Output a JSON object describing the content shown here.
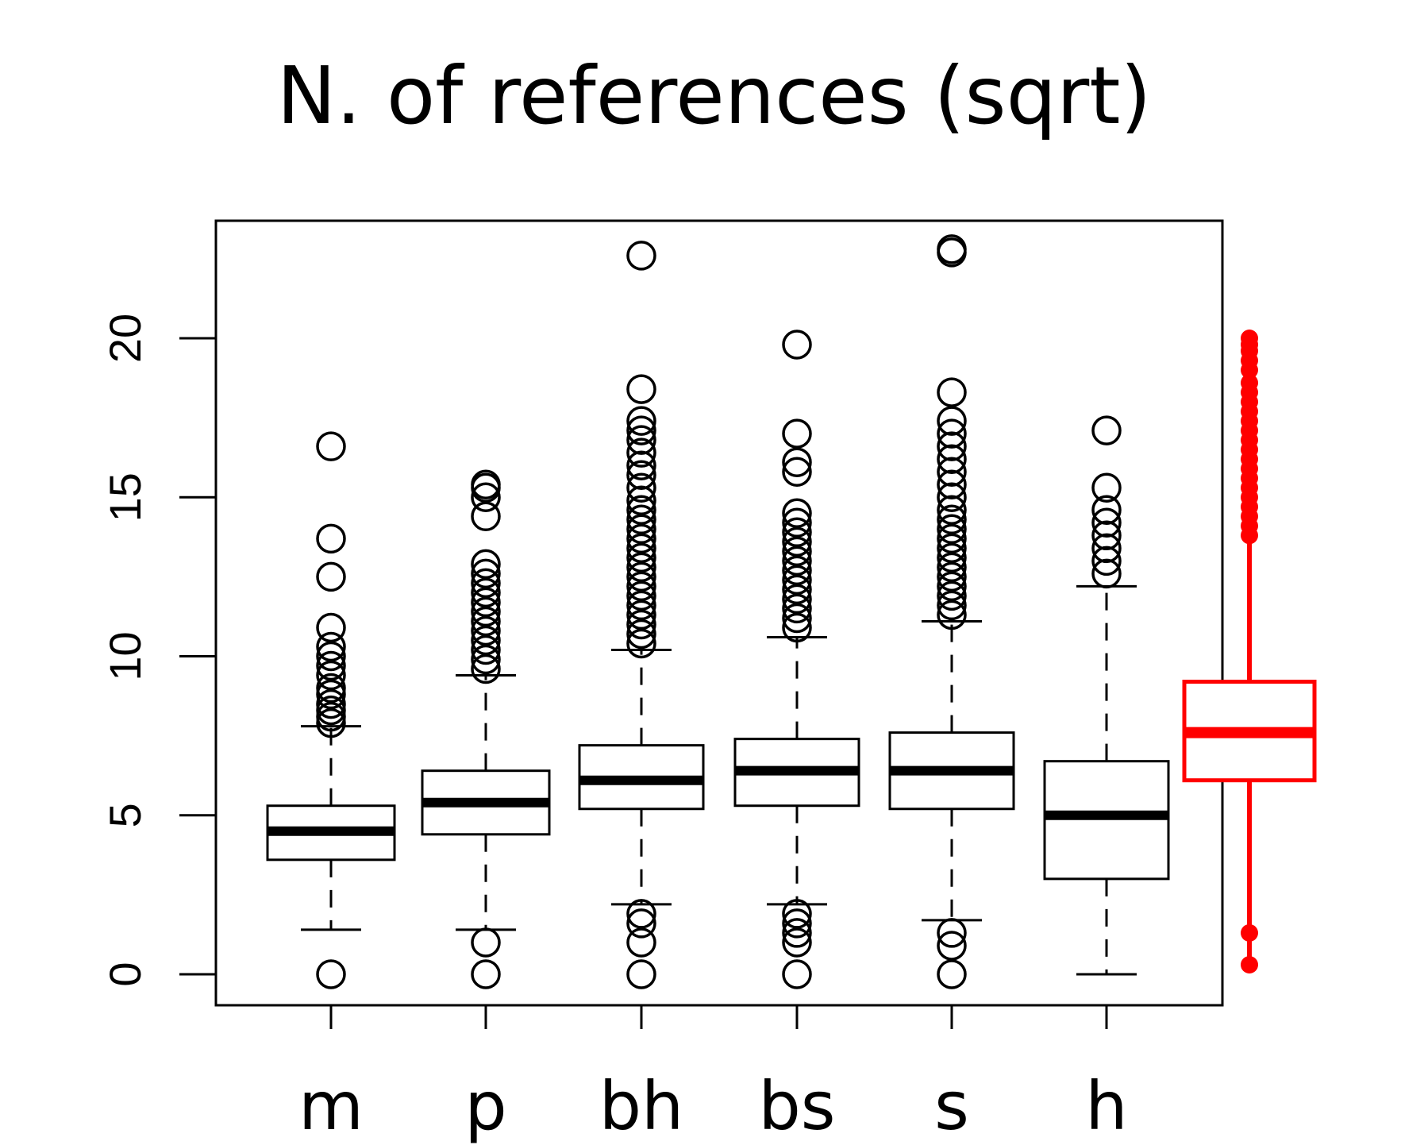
{
  "chart_data": {
    "type": "boxplot",
    "title": "N. of references (sqrt)",
    "xlabel": "",
    "ylabel": "",
    "ylim": [
      -0.9,
      23.7
    ],
    "yticks": [
      0,
      5,
      10,
      15,
      20
    ],
    "ytick_labels": [
      "0",
      "5",
      "10",
      "15",
      "20"
    ],
    "grid": false,
    "categories": [
      "m",
      "p",
      "bh",
      "bs",
      "s",
      "h"
    ],
    "boxes": [
      {
        "label": "m",
        "whisker_low": 1.4,
        "q1": 3.6,
        "median": 4.5,
        "q3": 5.3,
        "whisker_high": 7.8,
        "outliers": [
          0,
          7.9,
          8.1,
          8.3,
          8.5,
          8.8,
          9.0,
          9.4,
          9.7,
          10.0,
          10.3,
          10.9,
          12.5,
          13.7,
          16.6
        ],
        "color": "#000000"
      },
      {
        "label": "p",
        "whisker_low": 1.4,
        "q1": 4.4,
        "median": 5.4,
        "q3": 6.4,
        "whisker_high": 9.4,
        "outliers": [
          0,
          1.0,
          9.6,
          9.9,
          10.2,
          10.5,
          10.8,
          11.1,
          11.4,
          11.7,
          12.0,
          12.3,
          12.6,
          12.9,
          14.4,
          15.0,
          15.3,
          15.4
        ],
        "color": "#000000"
      },
      {
        "label": "bh",
        "whisker_low": 2.2,
        "q1": 5.2,
        "median": 6.1,
        "q3": 7.2,
        "whisker_high": 10.2,
        "outliers": [
          0,
          1.0,
          1.6,
          1.9,
          10.4,
          10.7,
          11.0,
          11.3,
          11.6,
          11.9,
          12.2,
          12.5,
          12.8,
          13.1,
          13.4,
          13.7,
          14.0,
          14.3,
          14.6,
          14.9,
          15.3,
          15.7,
          16.0,
          16.4,
          16.8,
          17.1,
          17.4,
          18.4,
          22.6
        ],
        "color": "#000000"
      },
      {
        "label": "bs",
        "whisker_low": 2.2,
        "q1": 5.3,
        "median": 6.4,
        "q3": 7.4,
        "whisker_high": 10.6,
        "outliers": [
          0,
          1.0,
          1.3,
          1.6,
          1.9,
          10.9,
          11.2,
          11.5,
          11.8,
          12.1,
          12.4,
          12.7,
          13.0,
          13.3,
          13.6,
          13.9,
          14.2,
          14.5,
          15.8,
          16.1,
          17.0,
          19.8
        ],
        "color": "#000000"
      },
      {
        "label": "s",
        "whisker_low": 1.7,
        "q1": 5.2,
        "median": 6.4,
        "q3": 7.6,
        "whisker_high": 11.1,
        "outliers": [
          0,
          0.9,
          1.3,
          11.3,
          11.6,
          11.9,
          12.2,
          12.5,
          12.8,
          13.1,
          13.4,
          13.7,
          14.0,
          14.3,
          14.6,
          15.0,
          15.4,
          15.8,
          16.2,
          16.6,
          17.0,
          17.4,
          18.3,
          22.7,
          22.8
        ],
        "color": "#000000"
      },
      {
        "label": "h",
        "whisker_low": 0,
        "q1": 3.0,
        "median": 5.0,
        "q3": 6.7,
        "whisker_high": 12.2,
        "outliers": [
          12.6,
          13.0,
          13.4,
          13.8,
          14.2,
          14.6,
          15.3,
          17.1
        ],
        "color": "#000000"
      },
      {
        "label": "",
        "whisker_low": 0.3,
        "q1": 6.1,
        "median": 7.6,
        "q3": 9.2,
        "whisker_high": 20.0,
        "outliers": [
          0.3,
          1.3,
          13.8,
          14.1,
          14.4,
          14.7,
          15.0,
          15.3,
          15.6,
          15.9,
          16.2,
          16.5,
          16.8,
          17.1,
          17.4,
          17.7,
          18.0,
          18.3,
          18.6,
          19.0,
          19.3,
          19.6,
          19.8,
          20.0
        ],
        "color": "#ff0000"
      }
    ]
  }
}
